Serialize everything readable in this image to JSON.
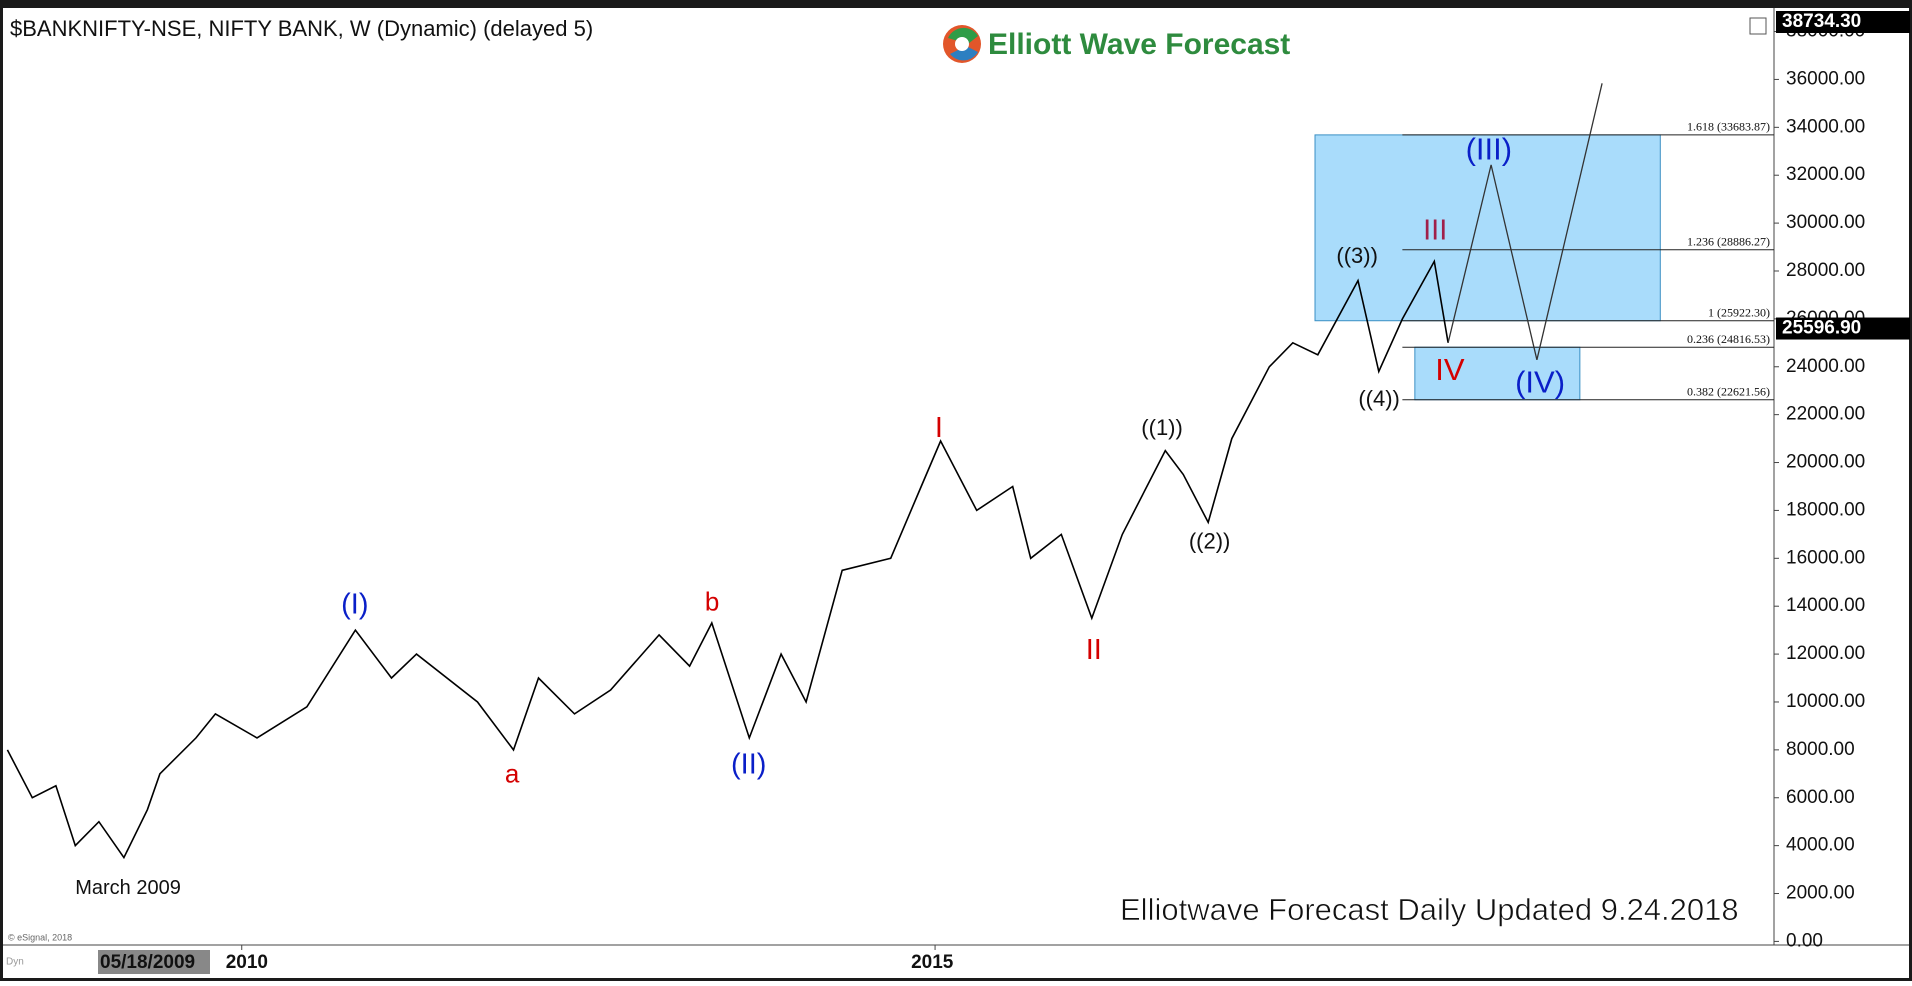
{
  "chart_data": {
    "type": "line",
    "title": "$BANKNIFTY-NSE, NIFTY BANK, W (Dynamic) (delayed 5)",
    "logo": "Elliott Wave Forecast",
    "footer": "Elliotwave Forecast Daily Updated 9.24.2018",
    "copyright": "© eSignal, 2018",
    "mode_label": "Dyn",
    "cursor_date": "05/18/2009",
    "xlim": [
      2008.3,
      2021.05
    ],
    "xticks": [
      2010,
      2015
    ],
    "ylim": [
      -150,
      38900
    ],
    "yticks": [
      {
        "value": 0,
        "label": "0.00"
      },
      {
        "value": 2000,
        "label": "2000.00"
      },
      {
        "value": 4000,
        "label": "4000.00"
      },
      {
        "value": 6000,
        "label": "6000.00"
      },
      {
        "value": 8000,
        "label": "8000.00"
      },
      {
        "value": 10000,
        "label": "10000.00"
      },
      {
        "value": 12000,
        "label": "12000.00"
      },
      {
        "value": 14000,
        "label": "14000.00"
      },
      {
        "value": 16000,
        "label": "16000.00"
      },
      {
        "value": 18000,
        "label": "18000.00"
      },
      {
        "value": 20000,
        "label": "20000.00"
      },
      {
        "value": 22000,
        "label": "22000.00"
      },
      {
        "value": 24000,
        "label": "24000.00"
      },
      {
        "value": 26000,
        "label": "26000.00"
      },
      {
        "value": 28000,
        "label": "28000.00"
      },
      {
        "value": 30000,
        "label": "30000.00"
      },
      {
        "value": 32000,
        "label": "32000.00"
      },
      {
        "value": 34000,
        "label": "34000.00"
      },
      {
        "value": 36000,
        "label": "36000.00"
      },
      {
        "value": 38000,
        "label": "38000.00"
      }
    ],
    "high_tag": {
      "value": 38734.3,
      "label": "38734.30"
    },
    "last_price": {
      "value": 25596.9,
      "label": "25596.90"
    },
    "series": [
      {
        "name": "Price",
        "color": "#000000",
        "x": [
          2008.31,
          2008.49,
          2008.66,
          2008.8,
          2008.97,
          2009.15,
          2009.32,
          2009.41,
          2009.67,
          2009.81,
          2010.11,
          2010.47,
          2010.82,
          2011.08,
          2011.26,
          2011.7,
          2011.96,
          2012.14,
          2012.4,
          2012.66,
          2013.01,
          2013.23,
          2013.39,
          2013.66,
          2013.89,
          2014.07,
          2014.33,
          2014.68,
          2014.9,
          2015.04,
          2015.3,
          2015.56,
          2015.69,
          2015.91,
          2016.13,
          2016.35,
          2016.66,
          2016.79,
          2016.97,
          2017.14,
          2017.41,
          2017.58,
          2017.76,
          2018.05,
          2018.2,
          2018.37,
          2018.6,
          2018.7
        ],
        "values": [
          8000,
          6000,
          6500,
          4000,
          5000,
          3500,
          5500,
          7000,
          8500,
          9500,
          8500,
          9800,
          13000,
          11000,
          12000,
          10000,
          8000,
          11000,
          9500,
          10500,
          12800,
          11500,
          13300,
          8500,
          12000,
          10000,
          15500,
          16000,
          19000,
          20900,
          18000,
          19000,
          16000,
          17000,
          13500,
          17000,
          20500,
          19500,
          17500,
          21000,
          24000,
          25000,
          24500,
          27600,
          23800,
          26000,
          28400,
          25000
        ]
      },
      {
        "name": "Projection",
        "color": "#333333",
        "x": [
          2018.7,
          2019.01,
          2019.34,
          2019.81
        ],
        "values": [
          25000,
          32430,
          24290,
          35840
        ]
      }
    ],
    "fib_levels": [
      {
        "value": 33683.87,
        "label": "1.618 (33683.87)"
      },
      {
        "value": 28886.27,
        "label": "1.236 (28886.27)"
      },
      {
        "value": 25922.3,
        "label": "1 (25922.30)"
      },
      {
        "value": 24816.53,
        "label": "0.236 (24816.53)"
      },
      {
        "value": 22621.56,
        "label": "0.382 (22621.56)"
      }
    ],
    "fib_start": 2018.37,
    "zones": [
      {
        "x": [
          2017.74,
          2020.23
        ],
        "y": [
          25922.3,
          33683.87
        ],
        "color": "#a9dcfb"
      },
      {
        "x": [
          2018.46,
          2019.65
        ],
        "y": [
          22621.56,
          24816.53
        ],
        "color": "#a9dcfb"
      }
    ],
    "wave_labels": [
      {
        "text": "(I)",
        "color": "#0a1fc8"
      },
      {
        "text": "a",
        "color": "#d40000"
      },
      {
        "text": "b",
        "color": "#d40000"
      },
      {
        "text": "(II)",
        "color": "#0a1fc8"
      },
      {
        "text": "I",
        "color": "#d40000"
      },
      {
        "text": "II",
        "color": "#d40000"
      },
      {
        "text": "((1))",
        "color": "#111111"
      },
      {
        "text": "((2))",
        "color": "#111111"
      },
      {
        "text": "((3))",
        "color": "#111111"
      },
      {
        "text": "((4))",
        "color": "#111111"
      },
      {
        "text": "III",
        "color": "#a0204a"
      },
      {
        "text": "(III)",
        "color": "#0a1fc8"
      },
      {
        "text": "IV",
        "color": "#d40000"
      },
      {
        "text": "(IV)",
        "color": "#0a1fc8"
      },
      {
        "text": "March 2009",
        "color": "#111111"
      }
    ]
  }
}
